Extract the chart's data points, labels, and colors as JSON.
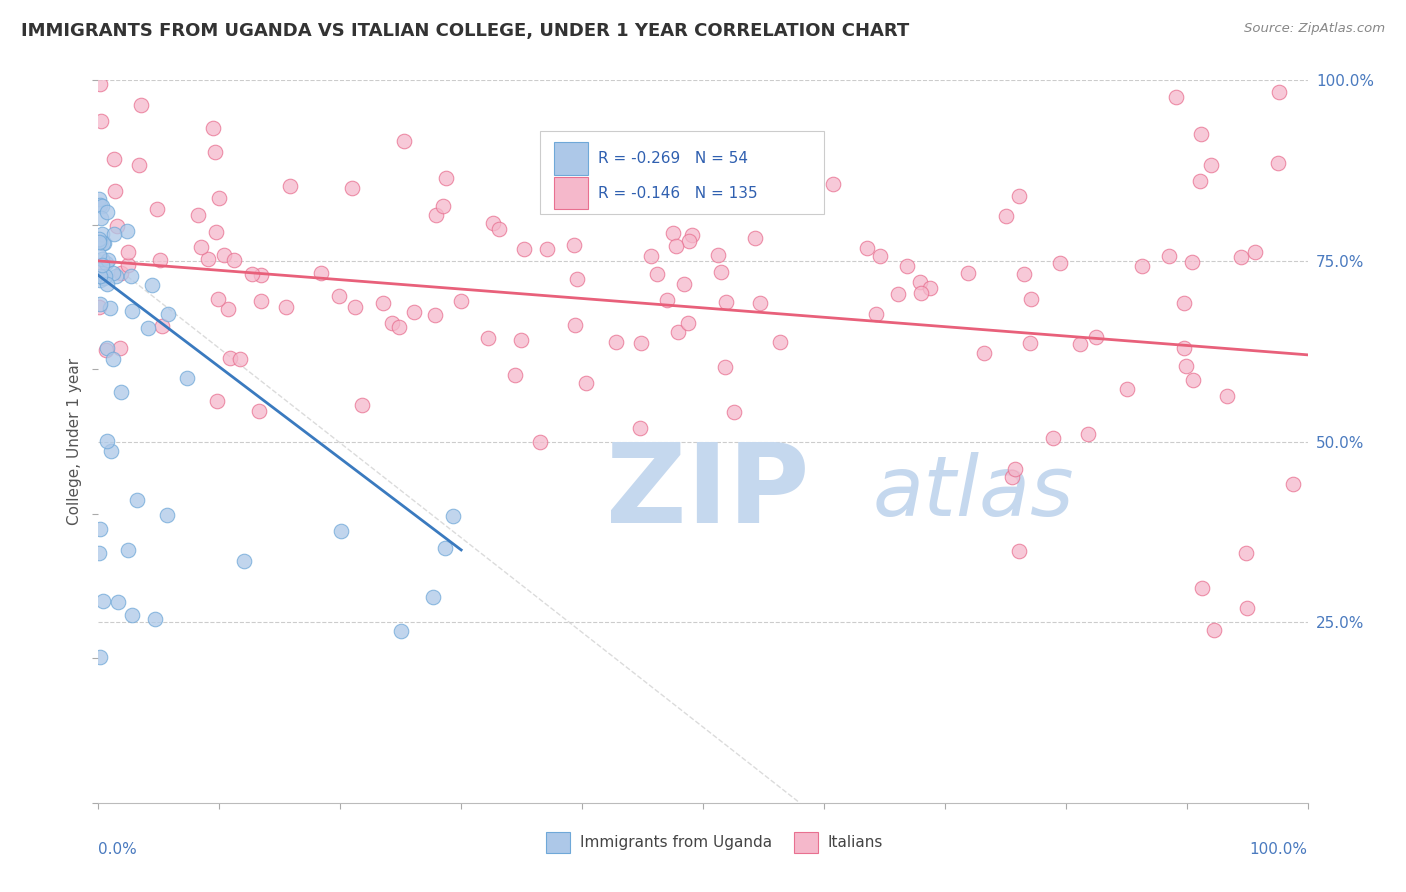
{
  "title": "IMMIGRANTS FROM UGANDA VS ITALIAN COLLEGE, UNDER 1 YEAR CORRELATION CHART",
  "source": "Source: ZipAtlas.com",
  "ylabel": "College, Under 1 year",
  "legend1_label": "Immigrants from Uganda",
  "legend2_label": "Italians",
  "R1": -0.269,
  "N1": 54,
  "R2": -0.146,
  "N2": 135,
  "color1_face": "#adc8e8",
  "color1_edge": "#6fa8d8",
  "color2_face": "#f5b8cb",
  "color2_edge": "#e87090",
  "trend1_color": "#3a7abf",
  "trend2_color": "#e8607a",
  "ref_line_color": "#cccccc",
  "grid_color": "#cccccc",
  "background_color": "#ffffff",
  "watermark_color": "#c5d8ee",
  "title_color": "#333333",
  "source_color": "#888888",
  "ylabel_color": "#555555",
  "tick_label_color": "#4a7abf",
  "legend_text_color": "#3060b0"
}
